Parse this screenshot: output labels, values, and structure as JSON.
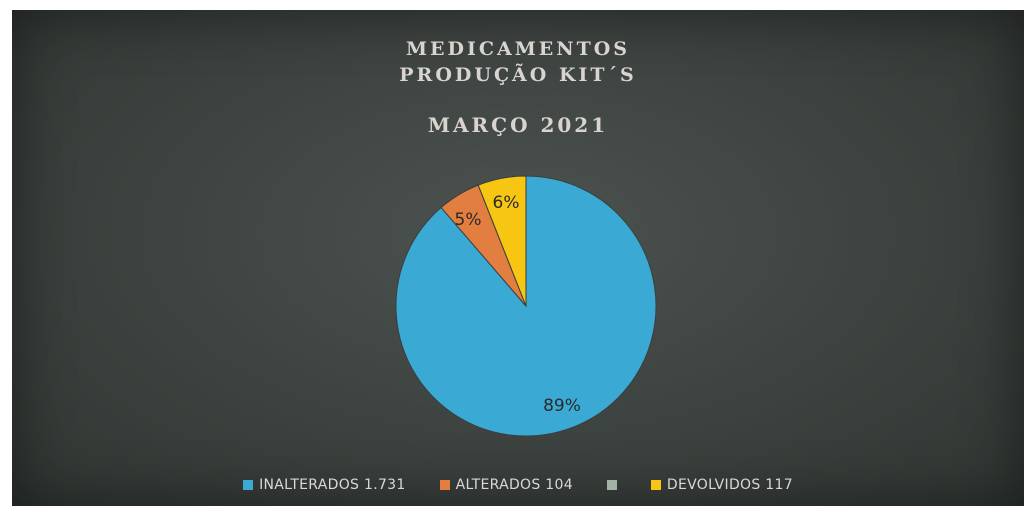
{
  "chart_data": {
    "type": "pie",
    "title_lines": [
      "MEDICAMENTOS",
      "PRODUÇÃO KIT´S",
      "MARÇO 2021"
    ],
    "slices": [
      {
        "label": "INALTERADOS 1.731",
        "value": 1731,
        "percent_label": "89%",
        "color": "#3aaad4"
      },
      {
        "label": "ALTERADOS 104",
        "value": 104,
        "percent_label": "5%",
        "color": "#e27e3f"
      },
      {
        "label": "",
        "value": 0,
        "percent_label": "",
        "color": "#a5b1a5"
      },
      {
        "label": "DEVOLVIDOS 117",
        "value": 117,
        "percent_label": "6%",
        "color": "#f7c613"
      }
    ],
    "legend_position": "bottom"
  }
}
